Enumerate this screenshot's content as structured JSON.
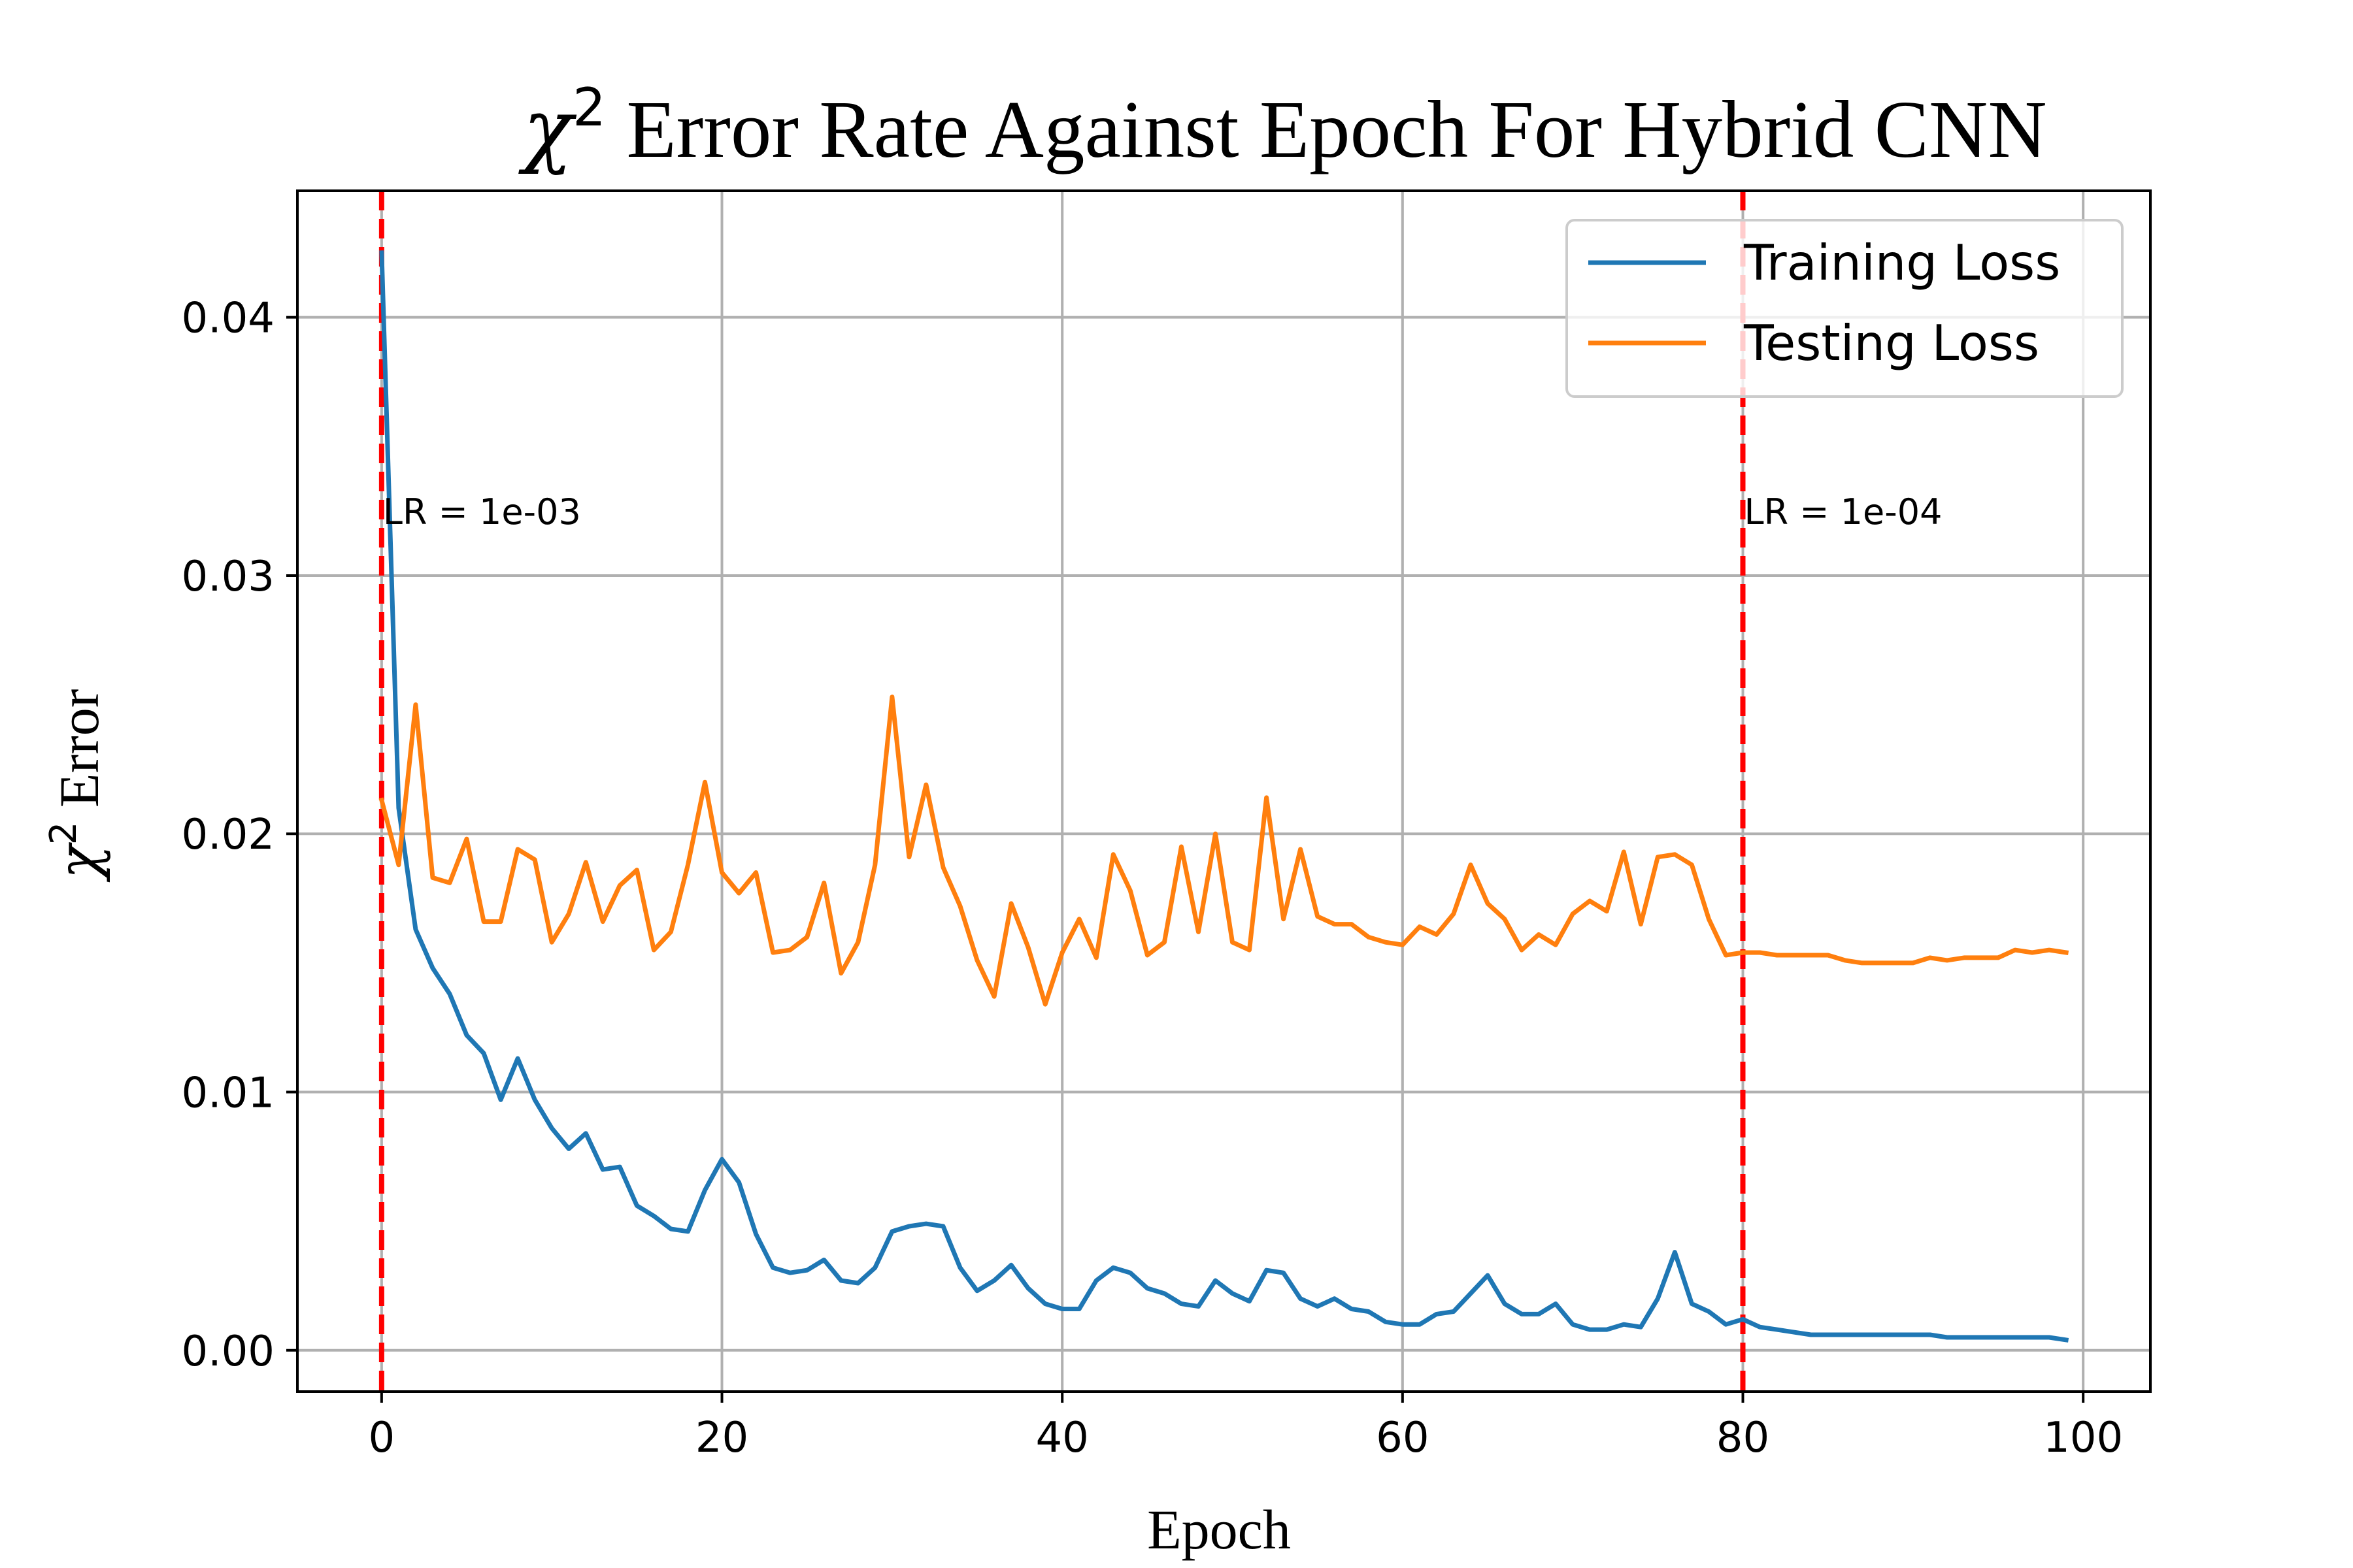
{
  "chart_data": {
    "type": "line",
    "title": "χ² Error Rate Against Epoch For Hybrid CNN",
    "title_parts": {
      "symbol": "χ",
      "superscript": "2",
      "rest": " Error Rate Against Epoch For Hybrid CNN"
    },
    "xlabel": "Epoch",
    "ylabel": "χ² Error",
    "ylabel_parts": {
      "symbol": "χ",
      "superscript": "2",
      "rest": " Error"
    },
    "xlim": [
      -4.95,
      103.95
    ],
    "ylim": [
      -0.0016,
      0.0449
    ],
    "x_ticks": [
      0,
      20,
      40,
      60,
      80,
      100
    ],
    "x_tick_labels": [
      "0",
      "20",
      "40",
      "60",
      "80",
      "100"
    ],
    "y_ticks": [
      0.0,
      0.01,
      0.02,
      0.03,
      0.04
    ],
    "y_tick_labels": [
      "0.00",
      "0.01",
      "0.02",
      "0.03",
      "0.04"
    ],
    "grid": true,
    "legend_position": "top-right",
    "x": [
      0,
      1,
      2,
      3,
      4,
      5,
      6,
      7,
      8,
      9,
      10,
      11,
      12,
      13,
      14,
      15,
      16,
      17,
      18,
      19,
      20,
      21,
      22,
      23,
      24,
      25,
      26,
      27,
      28,
      29,
      30,
      31,
      32,
      33,
      34,
      35,
      36,
      37,
      38,
      39,
      40,
      41,
      42,
      43,
      44,
      45,
      46,
      47,
      48,
      49,
      50,
      51,
      52,
      53,
      54,
      55,
      56,
      57,
      58,
      59,
      60,
      61,
      62,
      63,
      64,
      65,
      66,
      67,
      68,
      69,
      70,
      71,
      72,
      73,
      74,
      75,
      76,
      77,
      78,
      79,
      80,
      81,
      82,
      83,
      84,
      85,
      86,
      87,
      88,
      89,
      90,
      91,
      92,
      93,
      94,
      95,
      96,
      97,
      98,
      99
    ],
    "series": [
      {
        "name": "Training Loss",
        "color": "#1f77b4",
        "values": [
          0.0425,
          0.021,
          0.0163,
          0.0148,
          0.0138,
          0.0122,
          0.0115,
          0.0097,
          0.0113,
          0.0097,
          0.0086,
          0.0078,
          0.0084,
          0.007,
          0.0071,
          0.0056,
          0.0052,
          0.0047,
          0.0046,
          0.0062,
          0.0074,
          0.0065,
          0.0045,
          0.0032,
          0.003,
          0.0031,
          0.0035,
          0.0027,
          0.0026,
          0.0032,
          0.0046,
          0.0048,
          0.0049,
          0.0048,
          0.0032,
          0.0023,
          0.0027,
          0.0033,
          0.0024,
          0.0018,
          0.0016,
          0.0016,
          0.0027,
          0.0032,
          0.003,
          0.0024,
          0.0022,
          0.0018,
          0.0017,
          0.0027,
          0.0022,
          0.0019,
          0.0031,
          0.003,
          0.002,
          0.0017,
          0.002,
          0.0016,
          0.0015,
          0.0011,
          0.001,
          0.001,
          0.0014,
          0.0015,
          0.0022,
          0.0029,
          0.0018,
          0.0014,
          0.0014,
          0.0018,
          0.001,
          0.0008,
          0.0008,
          0.001,
          0.0009,
          0.002,
          0.0038,
          0.0018,
          0.0015,
          0.001,
          0.0012,
          0.0009,
          0.0008,
          0.0007,
          0.0006,
          0.0006,
          0.0006,
          0.0006,
          0.0006,
          0.0006,
          0.0006,
          0.0006,
          0.0005,
          0.0005,
          0.0005,
          0.0005,
          0.0005,
          0.0005,
          0.0005,
          0.0004
        ]
      },
      {
        "name": "Testing Loss",
        "color": "#ff7f0e",
        "values": [
          0.0213,
          0.0188,
          0.025,
          0.0183,
          0.0181,
          0.0198,
          0.0166,
          0.0166,
          0.0194,
          0.019,
          0.0158,
          0.0169,
          0.0189,
          0.0166,
          0.018,
          0.0186,
          0.0155,
          0.0162,
          0.0188,
          0.022,
          0.0185,
          0.0177,
          0.0185,
          0.0154,
          0.0155,
          0.016,
          0.0181,
          0.0146,
          0.0158,
          0.0188,
          0.0253,
          0.0191,
          0.0219,
          0.0187,
          0.0172,
          0.0151,
          0.0137,
          0.0173,
          0.0156,
          0.0134,
          0.0154,
          0.0167,
          0.0152,
          0.0192,
          0.0178,
          0.0153,
          0.0158,
          0.0195,
          0.0162,
          0.02,
          0.0158,
          0.0155,
          0.0214,
          0.0167,
          0.0194,
          0.0168,
          0.0165,
          0.0165,
          0.016,
          0.0158,
          0.0157,
          0.0164,
          0.0161,
          0.0169,
          0.0188,
          0.0173,
          0.0167,
          0.0155,
          0.0161,
          0.0157,
          0.0169,
          0.0174,
          0.017,
          0.0193,
          0.0165,
          0.0191,
          0.0192,
          0.0188,
          0.0167,
          0.0153,
          0.0154,
          0.0154,
          0.0153,
          0.0153,
          0.0153,
          0.0153,
          0.0151,
          0.015,
          0.015,
          0.015,
          0.015,
          0.0152,
          0.0151,
          0.0152,
          0.0152,
          0.0152,
          0.0155,
          0.0154,
          0.0155,
          0.0154
        ]
      }
    ],
    "vlines": [
      {
        "x": 0,
        "color": "#ff0000",
        "label": "LR = 1e-03"
      },
      {
        "x": 80,
        "color": "#ff0000",
        "label": "LR = 1e-04"
      }
    ],
    "annotation_y": 0.032
  }
}
